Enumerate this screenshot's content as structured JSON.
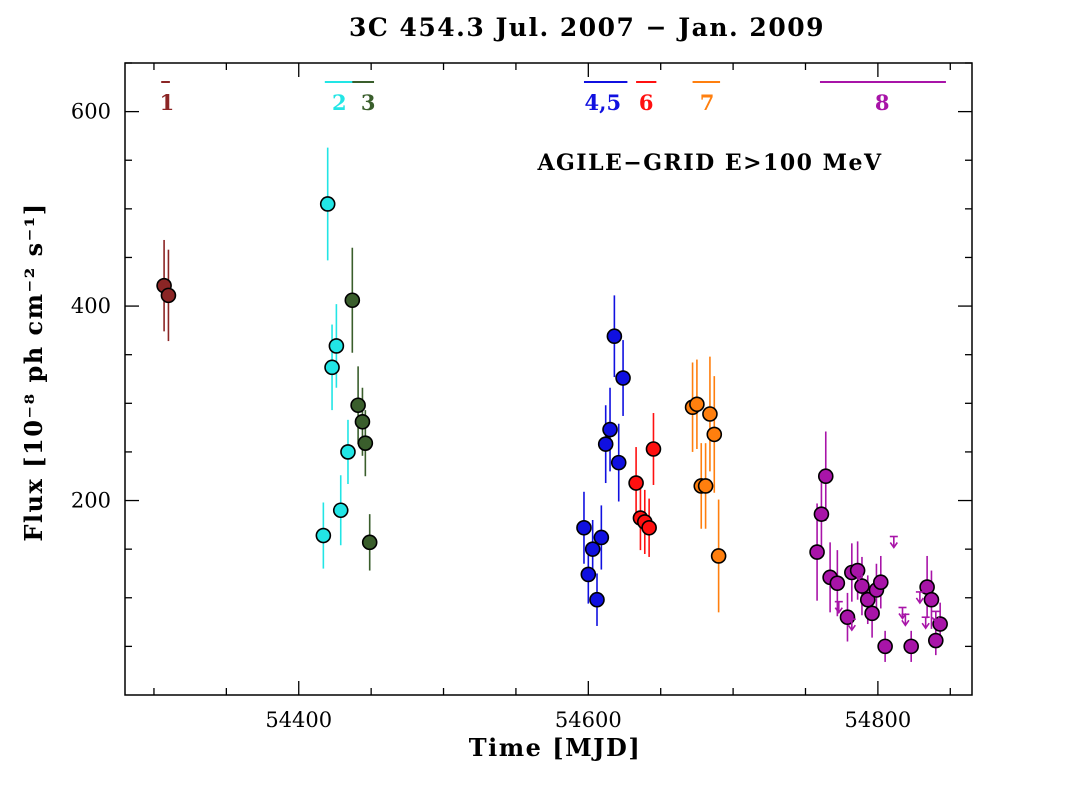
{
  "chart_data": {
    "type": "scatter",
    "title": "3C 454.3   Jul. 2007 − Jan. 2009",
    "xlabel": "Time [MJD]",
    "ylabel": "Flux [10⁻⁸ ph cm⁻² s⁻¹]",
    "annotation": "AGILE−GRID E>100 MeV",
    "xlim": [
      54280,
      54865
    ],
    "ylim": [
      0,
      650
    ],
    "x_ticks": [
      54400,
      54600,
      54800
    ],
    "y_ticks": [
      200,
      400,
      600
    ],
    "grid": false,
    "periods": [
      {
        "label": "1",
        "color": "#8b2525",
        "x_start": 54305,
        "x_end": 54311,
        "label_x": 54309
      },
      {
        "label": "2",
        "color": "#22e5e5",
        "x_start": 54418,
        "x_end": 54438,
        "label_x": 54428
      },
      {
        "label": "3",
        "color": "#3a5e2c",
        "x_start": 54437,
        "x_end": 54452,
        "label_x": 54448
      },
      {
        "label": "4,5",
        "color": "#1010e0",
        "x_start": 54597,
        "x_end": 54627,
        "label_x": 54610
      },
      {
        "label": "6",
        "color": "#ff1010",
        "x_start": 54633,
        "x_end": 54647,
        "label_x": 54640
      },
      {
        "label": "7",
        "color": "#ff7f0e",
        "x_start": 54672,
        "x_end": 54691,
        "label_x": 54682
      },
      {
        "label": "8",
        "color": "#a814a8",
        "x_start": 54760,
        "x_end": 54847,
        "label_x": 54803
      }
    ],
    "series": [
      {
        "label": "1",
        "color": "#8b2525",
        "points": [
          {
            "x": 54307,
            "y": 421,
            "err": 47
          },
          {
            "x": 54310,
            "y": 411,
            "err": 47
          }
        ]
      },
      {
        "label": "2",
        "color": "#22e5e5",
        "points": [
          {
            "x": 54420,
            "y": 505,
            "err": 58
          },
          {
            "x": 54417,
            "y": 164,
            "err": 34
          },
          {
            "x": 54423,
            "y": 337,
            "err": 44
          },
          {
            "x": 54426,
            "y": 359,
            "err": 43
          },
          {
            "x": 54429,
            "y": 190,
            "err": 36
          },
          {
            "x": 54434,
            "y": 250,
            "err": 33
          }
        ]
      },
      {
        "label": "3",
        "color": "#3a5e2c",
        "points": [
          {
            "x": 54437,
            "y": 406,
            "err": 54
          },
          {
            "x": 54441,
            "y": 298,
            "err": 40
          },
          {
            "x": 54444,
            "y": 281,
            "err": 35
          },
          {
            "x": 54446,
            "y": 259,
            "err": 34
          },
          {
            "x": 54449,
            "y": 157,
            "err": 29
          }
        ]
      },
      {
        "label": "4,5",
        "color": "#1010e0",
        "points": [
          {
            "x": 54597,
            "y": 172,
            "err": 37
          },
          {
            "x": 54600,
            "y": 124,
            "err": 30
          },
          {
            "x": 54603,
            "y": 150,
            "err": 30
          },
          {
            "x": 54606,
            "y": 98,
            "err": 27
          },
          {
            "x": 54609,
            "y": 162,
            "err": 33
          },
          {
            "x": 54612,
            "y": 258,
            "err": 40
          },
          {
            "x": 54615,
            "y": 273,
            "err": 43
          },
          {
            "x": 54618,
            "y": 369,
            "err": 42
          },
          {
            "x": 54621,
            "y": 239,
            "err": 40
          },
          {
            "x": 54624,
            "y": 326,
            "err": 39
          }
        ]
      },
      {
        "label": "6",
        "color": "#ff1010",
        "points": [
          {
            "x": 54633,
            "y": 218,
            "err": 37
          },
          {
            "x": 54636,
            "y": 182,
            "err": 33
          },
          {
            "x": 54639,
            "y": 178,
            "err": 33
          },
          {
            "x": 54642,
            "y": 172,
            "err": 30
          },
          {
            "x": 54645,
            "y": 253,
            "err": 37
          }
        ]
      },
      {
        "label": "7",
        "color": "#ff7f0e",
        "points": [
          {
            "x": 54672,
            "y": 296,
            "err": 46
          },
          {
            "x": 54675,
            "y": 299,
            "err": 46
          },
          {
            "x": 54678,
            "y": 215,
            "err": 44
          },
          {
            "x": 54681,
            "y": 215,
            "err": 44
          },
          {
            "x": 54684,
            "y": 289,
            "err": 59
          },
          {
            "x": 54687,
            "y": 268,
            "err": 60
          },
          {
            "x": 54690,
            "y": 143,
            "err": 58
          }
        ]
      },
      {
        "label": "8",
        "color": "#a814a8",
        "points": [
          {
            "x": 54758,
            "y": 147,
            "err": 50
          },
          {
            "x": 54761,
            "y": 186,
            "err": 40
          },
          {
            "x": 54764,
            "y": 225,
            "err": 46
          },
          {
            "x": 54767,
            "y": 121,
            "err": 36
          },
          {
            "x": 54772,
            "y": 115,
            "err": 34
          },
          {
            "x": 54779,
            "y": 80,
            "err": 25
          },
          {
            "x": 54782,
            "y": 126,
            "err": 30
          },
          {
            "x": 54786,
            "y": 128,
            "err": 30
          },
          {
            "x": 54789,
            "y": 112,
            "err": 30
          },
          {
            "x": 54793,
            "y": 98,
            "err": 25
          },
          {
            "x": 54796,
            "y": 84,
            "err": 25
          },
          {
            "x": 54799,
            "y": 108,
            "err": 27
          },
          {
            "x": 54802,
            "y": 116,
            "err": 27
          },
          {
            "x": 54805,
            "y": 50,
            "err": 16
          },
          {
            "x": 54823,
            "y": 50,
            "err": 16
          },
          {
            "x": 54834,
            "y": 111,
            "err": 32
          },
          {
            "x": 54837,
            "y": 98,
            "err": 30
          },
          {
            "x": 54840,
            "y": 56,
            "err": 15
          },
          {
            "x": 54843,
            "y": 73,
            "err": 22
          }
        ]
      }
    ],
    "upper_limits": {
      "label": "8",
      "color": "#a814a8",
      "points": [
        {
          "x": 54773,
          "y": 96
        },
        {
          "x": 54782,
          "y": 78
        },
        {
          "x": 54787,
          "y": 130
        },
        {
          "x": 54811,
          "y": 163
        },
        {
          "x": 54817,
          "y": 90
        },
        {
          "x": 54819,
          "y": 83
        },
        {
          "x": 54829,
          "y": 106
        },
        {
          "x": 54833,
          "y": 80
        },
        {
          "x": 54840,
          "y": 86
        }
      ]
    }
  }
}
